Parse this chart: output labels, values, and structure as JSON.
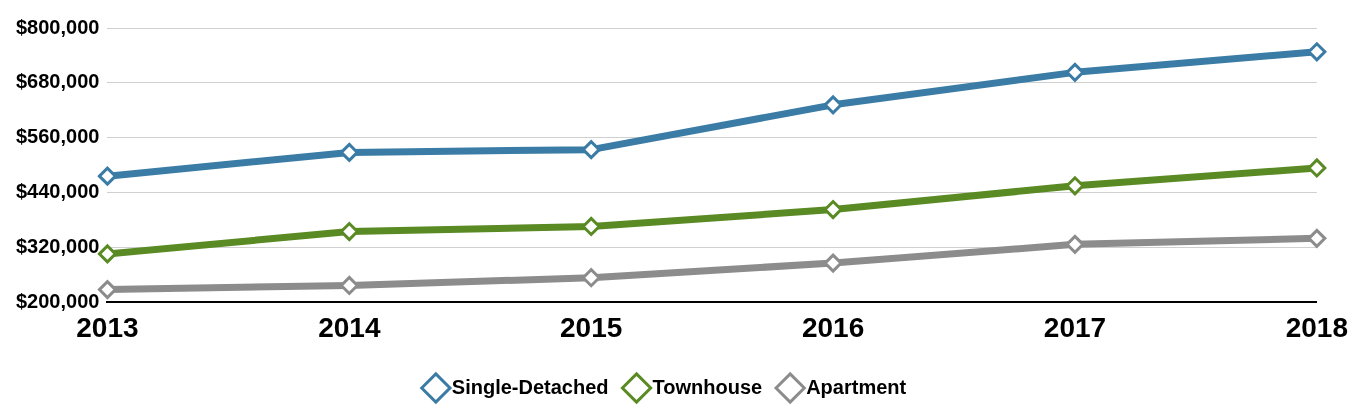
{
  "chart_data": {
    "type": "line",
    "categories": [
      "2013",
      "2014",
      "2015",
      "2016",
      "2017",
      "2018"
    ],
    "series": [
      {
        "name": "Single-Detached",
        "color": "#3a7ca5",
        "values": [
          476000,
          528000,
          534000,
          632000,
          703000,
          748000
        ]
      },
      {
        "name": "Townhouse",
        "color": "#5a8a23",
        "values": [
          306000,
          355000,
          366000,
          403000,
          455000,
          494000
        ]
      },
      {
        "name": "Apartment",
        "color": "#8c8c8c",
        "values": [
          228000,
          237000,
          254000,
          286000,
          327000,
          340000
        ]
      }
    ],
    "ylim": [
      200000,
      800000
    ],
    "yticks": [
      {
        "value": 200000,
        "label": "$200,000"
      },
      {
        "value": 320000,
        "label": "$320,000"
      },
      {
        "value": 440000,
        "label": "$440,000"
      },
      {
        "value": 560000,
        "label": "$560,000"
      },
      {
        "value": 680000,
        "label": "$680,000"
      },
      {
        "value": 800000,
        "label": "$800,000"
      }
    ],
    "grid": "y",
    "legend": "bottom",
    "marker": "diamond",
    "line_style": "solid"
  }
}
